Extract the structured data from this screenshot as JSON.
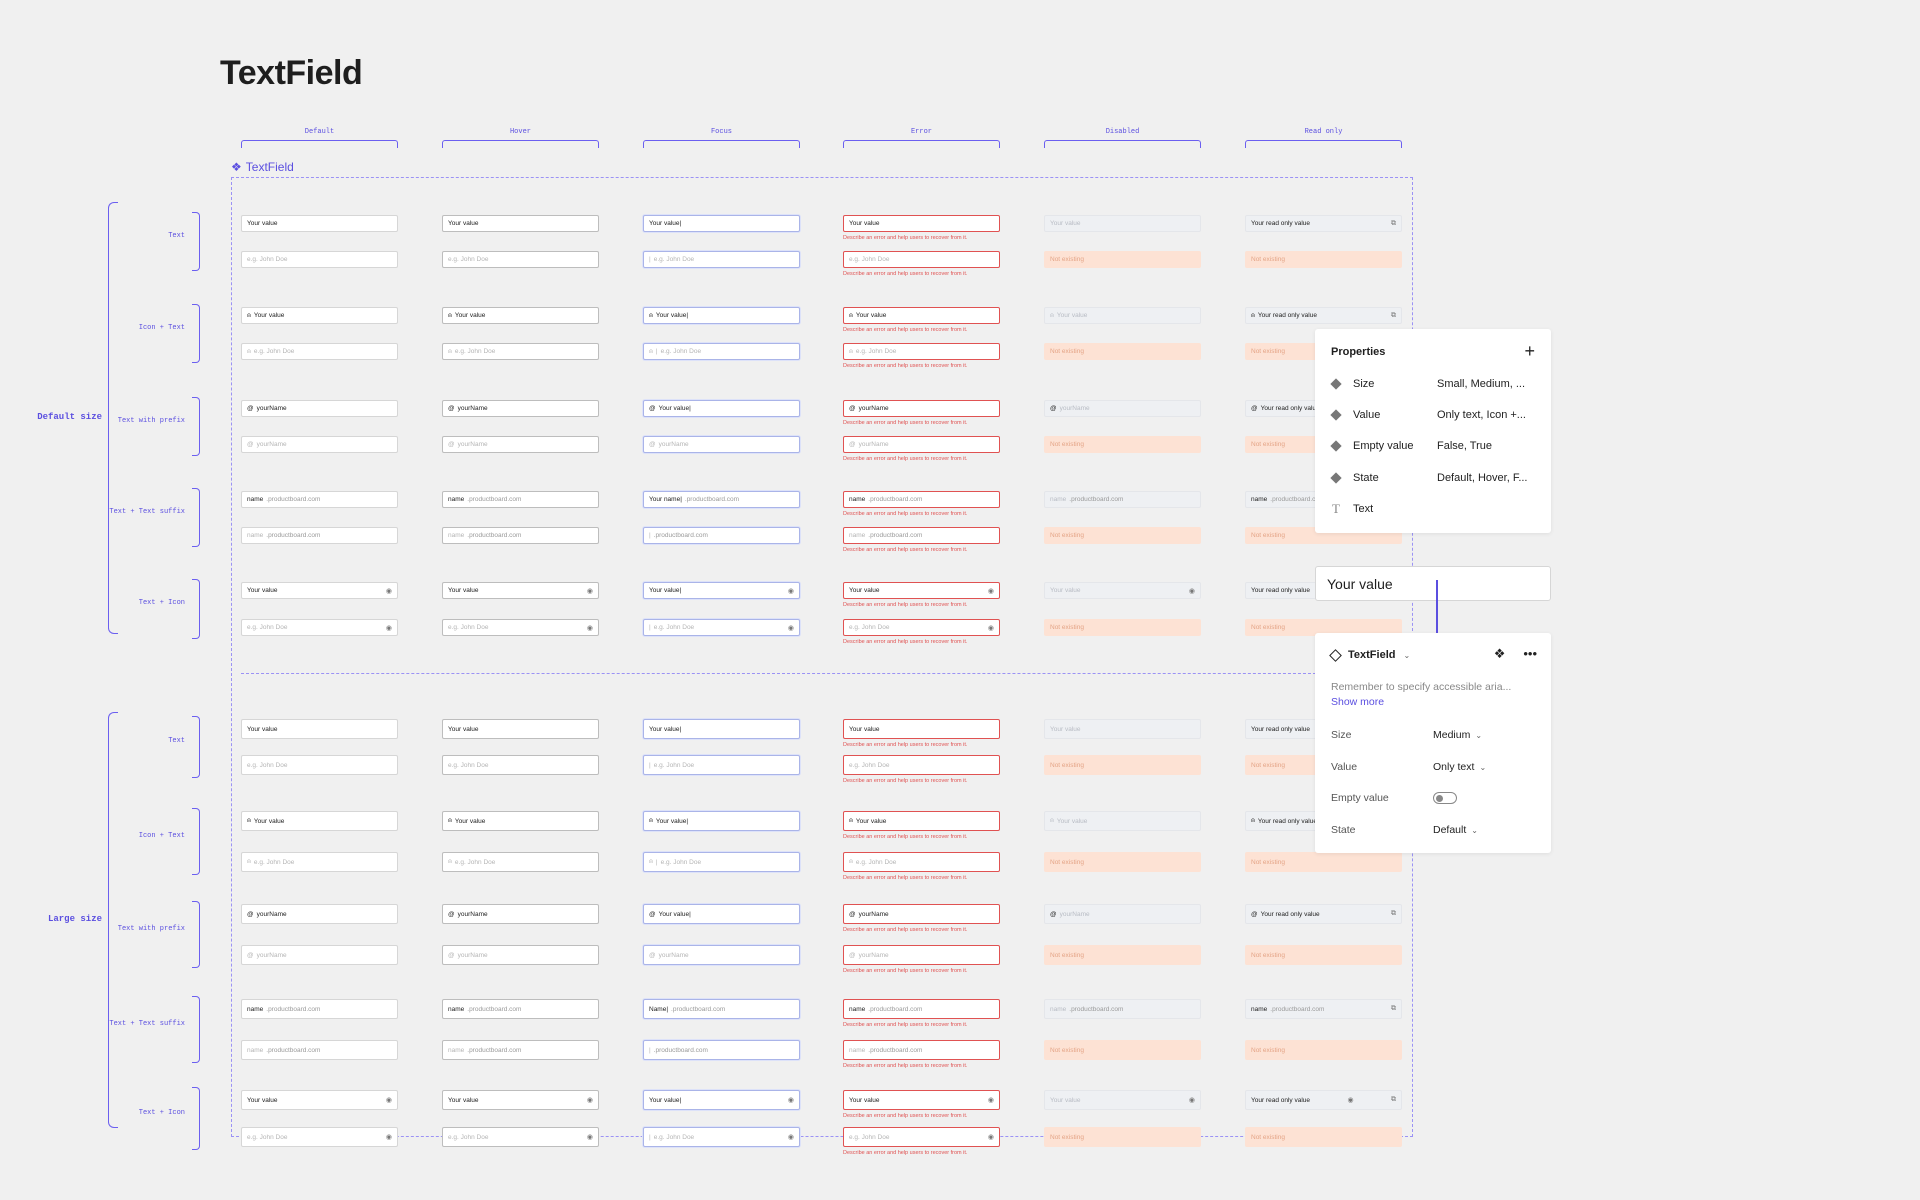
{
  "page": {
    "title": "TextField",
    "component_name": "TextField"
  },
  "columns": [
    "Default",
    "Hover",
    "Focus",
    "Error",
    "Disabled",
    "Read only"
  ],
  "groups": [
    "Default size",
    "Large size"
  ],
  "row_types": [
    "Text",
    "Icon + Text",
    "Text with prefix",
    "Text + Text suffix",
    "Text + Icon"
  ],
  "texts": {
    "value": "Your value",
    "value_focus": "Your value|",
    "placeholder": "e.g. John Doe",
    "ro_value": "Your read only value",
    "not_existing": "Not existing",
    "error_msg": "Describe an error and help users to recover from it.",
    "prefix": "@",
    "username": "yourName",
    "focus_user": "Your value|",
    "suffix_name": "name",
    "suffix_domain": ".productboard.com",
    "focus_suffix": "Your name|",
    "focus_suffix_large": "Name|",
    "focus_suffix_empty": "|"
  },
  "properties_panel": {
    "title": "Properties",
    "rows": [
      {
        "icon": "variant",
        "name": "Size",
        "value": "Small, Medium, ..."
      },
      {
        "icon": "variant",
        "name": "Value",
        "value": "Only text, Icon +..."
      },
      {
        "icon": "variant",
        "name": "Empty value",
        "value": "False, True"
      },
      {
        "icon": "variant",
        "name": "State",
        "value": "Default, Hover, F..."
      },
      {
        "icon": "text",
        "name": "Text",
        "value": ""
      }
    ]
  },
  "preview_field": {
    "value": "Your value"
  },
  "instance_panel": {
    "name": "TextField",
    "note": "Remember to specify accessible aria...",
    "show_more": "Show more",
    "rows": [
      {
        "name": "Size",
        "value": "Medium",
        "kind": "dropdown"
      },
      {
        "name": "Value",
        "value": "Only text",
        "kind": "dropdown"
      },
      {
        "name": "Empty value",
        "value": "",
        "kind": "toggle",
        "on": false
      },
      {
        "name": "State",
        "value": "Default",
        "kind": "dropdown"
      }
    ]
  },
  "colors": {
    "accent": "#5b4fe0",
    "error": "#e05252",
    "not_existing_bg": "#fde2d4"
  }
}
